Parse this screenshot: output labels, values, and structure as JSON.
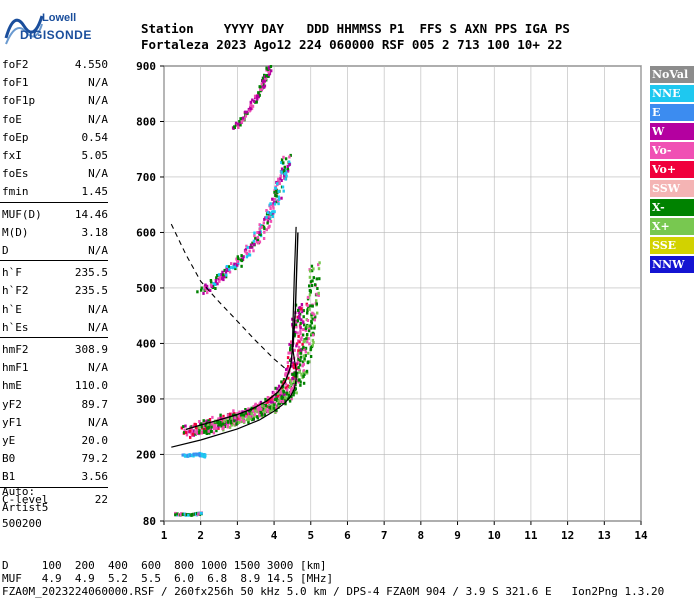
{
  "logo": {
    "top": "Lowell",
    "bottom": "DIGISONDE"
  },
  "header": {
    "line1": "Station    YYYY DAY   DDD HHMMSS P1  FFS S AXN PPS IGA PS",
    "line2": "Fortaleza 2023 Ago12 224 060000 RSF 005 2 713 100 10+ 22"
  },
  "params": [
    {
      "label": "foF2",
      "value": "4.550"
    },
    {
      "label": "foF1",
      "value": "N/A"
    },
    {
      "label": "foF1p",
      "value": "N/A"
    },
    {
      "label": "foE",
      "value": "N/A"
    },
    {
      "label": "foEp",
      "value": "0.54"
    },
    {
      "label": "fxI",
      "value": "5.05"
    },
    {
      "label": "foEs",
      "value": "N/A"
    },
    {
      "label": "fmin",
      "value": "1.45"
    },
    {
      "label": "MUF(D)",
      "value": "14.46"
    },
    {
      "label": "M(D)",
      "value": "3.18"
    },
    {
      "label": "D",
      "value": "N/A"
    },
    {
      "label": "h`F",
      "value": "235.5"
    },
    {
      "label": "h`F2",
      "value": "235.5"
    },
    {
      "label": "h`E",
      "value": "N/A"
    },
    {
      "label": "h`Es",
      "value": "N/A"
    },
    {
      "label": "hmF2",
      "value": "308.9"
    },
    {
      "label": "hmF1",
      "value": "N/A"
    },
    {
      "label": "hmE",
      "value": "110.0"
    },
    {
      "label": "yF2",
      "value": "89.7"
    },
    {
      "label": "yF1",
      "value": "N/A"
    },
    {
      "label": "yE",
      "value": "20.0"
    },
    {
      "label": "B0",
      "value": "79.2"
    },
    {
      "label": "B1",
      "value": "3.56"
    },
    {
      "label": "C-level",
      "value": "22"
    }
  ],
  "auto": {
    "line1": "Auto:",
    "line2": "Artist5",
    "line3": "500200"
  },
  "legend": [
    {
      "label": "NoVal",
      "color": "#8c8c8c"
    },
    {
      "label": "NNE",
      "color": "#1ec8f0"
    },
    {
      "label": "E",
      "color": "#3c8cf0"
    },
    {
      "label": "W",
      "color": "#b400a0"
    },
    {
      "label": "Vo-",
      "color": "#f050b4"
    },
    {
      "label": "Vo+",
      "color": "#f0003c"
    },
    {
      "label": "SSW",
      "color": "#f4b4b4"
    },
    {
      "label": "X-",
      "color": "#008200"
    },
    {
      "label": "X+",
      "color": "#78c850"
    },
    {
      "label": "SSE",
      "color": "#d2d200"
    },
    {
      "label": "NNW",
      "color": "#1414d2"
    }
  ],
  "footer": {
    "line1": "D     100  200  400  600  800 1000 1500 3000 [km]",
    "line2": "MUF   4.9  4.9  5.2  5.5  6.0  6.8  8.9 14.5 [MHz]",
    "line3": "FZA0M_2023224060000.RSF / 260fx256h 50 kHz 5.0 km / DPS-4 FZA0M 904 / 3.9 S 321.6 E   Ion2Png 1.3.20"
  },
  "chart_data": {
    "type": "scatter",
    "xlim": [
      1,
      14
    ],
    "ylim": [
      80,
      900
    ],
    "x_ticks": [
      1,
      2,
      3,
      4,
      5,
      6,
      7,
      8,
      9,
      10,
      11,
      12,
      13,
      14
    ],
    "y_ticks": [
      80,
      200,
      300,
      400,
      500,
      600,
      700,
      800,
      900
    ],
    "grid": true,
    "legend_placement": "right",
    "profile_curve": [
      [
        1.2,
        213
      ],
      [
        2.0,
        226
      ],
      [
        3.0,
        246
      ],
      [
        3.6,
        262
      ],
      [
        4.0,
        278
      ],
      [
        4.3,
        293
      ],
      [
        4.45,
        305
      ],
      [
        4.55,
        318
      ],
      [
        4.6,
        335
      ],
      [
        4.6,
        352
      ],
      [
        4.55,
        372
      ],
      [
        4.5,
        395
      ],
      [
        4.52,
        450
      ],
      [
        4.55,
        520
      ],
      [
        4.6,
        610
      ]
    ],
    "trace_curve": [
      [
        1.6,
        245
      ],
      [
        2.0,
        253
      ],
      [
        2.5,
        262
      ],
      [
        3.0,
        272
      ],
      [
        3.4,
        282
      ],
      [
        3.8,
        296
      ],
      [
        4.1,
        312
      ],
      [
        4.3,
        330
      ],
      [
        4.45,
        358
      ],
      [
        4.52,
        400
      ],
      [
        4.58,
        460
      ],
      [
        4.62,
        540
      ],
      [
        4.65,
        600
      ]
    ],
    "dashed_curve": [
      [
        1.2,
        615
      ],
      [
        1.6,
        560
      ],
      [
        2.0,
        512
      ],
      [
        2.5,
        475
      ],
      [
        3.0,
        440
      ],
      [
        3.5,
        405
      ],
      [
        4.0,
        372
      ],
      [
        4.3,
        355
      ]
    ],
    "o_trace": [
      [
        1.6,
        242
      ],
      [
        2.0,
        252
      ],
      [
        2.5,
        262
      ],
      [
        3.0,
        270
      ],
      [
        3.5,
        283
      ],
      [
        4.0,
        300
      ],
      [
        4.3,
        325
      ],
      [
        4.5,
        360
      ],
      [
        4.6,
        420
      ],
      [
        4.7,
        470
      ]
    ],
    "x_trace": [
      [
        2.0,
        248
      ],
      [
        2.5,
        256
      ],
      [
        3.0,
        266
      ],
      [
        3.5,
        278
      ],
      [
        4.0,
        292
      ],
      [
        4.4,
        312
      ],
      [
        4.7,
        345
      ],
      [
        4.9,
        400
      ],
      [
        5.0,
        460
      ],
      [
        5.1,
        540
      ]
    ],
    "echo_upper": [
      [
        2.0,
        495
      ],
      [
        2.5,
        520
      ],
      [
        3.0,
        548
      ],
      [
        3.5,
        590
      ],
      [
        3.8,
        625
      ],
      [
        4.0,
        660
      ],
      [
        4.2,
        700
      ],
      [
        4.3,
        735
      ]
    ],
    "echo_top": [
      [
        2.9,
        790
      ],
      [
        3.2,
        815
      ],
      [
        3.5,
        845
      ],
      [
        3.7,
        875
      ],
      [
        3.85,
        900
      ]
    ],
    "echo_low": [
      [
        1.5,
        200
      ],
      [
        1.9,
        203
      ],
      [
        2.1,
        200
      ]
    ],
    "echo_base": [
      [
        1.3,
        95
      ],
      [
        1.7,
        94
      ],
      [
        2.0,
        96
      ]
    ]
  }
}
